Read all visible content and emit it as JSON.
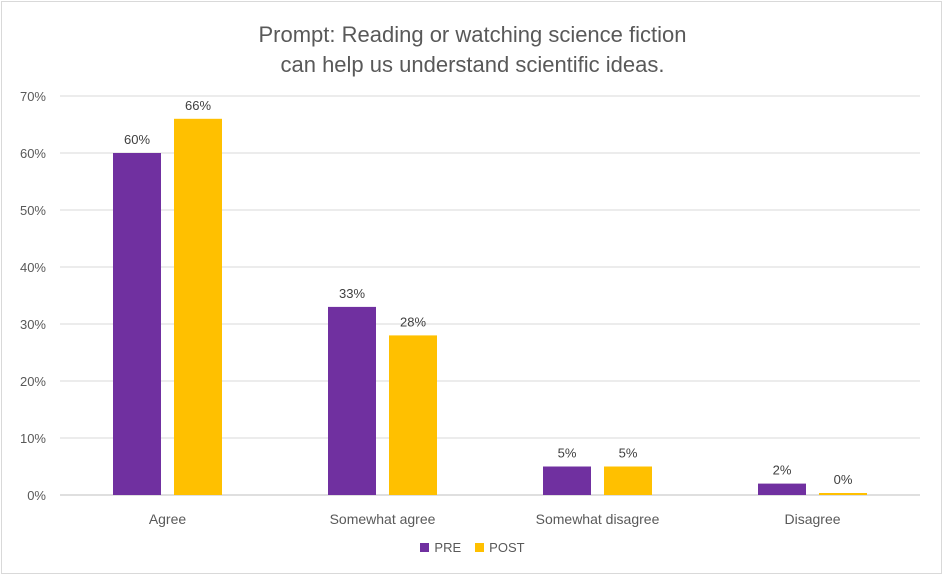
{
  "chart_data": {
    "type": "bar",
    "title_lines": [
      "Prompt: Reading or watching science fiction",
      "can help us understand scientific ideas."
    ],
    "categories": [
      "Agree",
      "Somewhat agree",
      "Somewhat disagree",
      "Disagree"
    ],
    "series": [
      {
        "name": "PRE",
        "color": "#7030a0",
        "values": [
          60,
          33,
          5,
          2
        ],
        "labels": [
          "60%",
          "33%",
          "5%",
          "2%"
        ]
      },
      {
        "name": "POST",
        "color": "#ffc000",
        "values": [
          66,
          28,
          5,
          0
        ],
        "labels": [
          "66%",
          "28%",
          "5%",
          "0%"
        ]
      }
    ],
    "ylim": [
      0,
      70
    ],
    "yticks": [
      0,
      10,
      20,
      30,
      40,
      50,
      60,
      70
    ],
    "ytick_labels": [
      "0%",
      "10%",
      "20%",
      "30%",
      "40%",
      "50%",
      "60%",
      "70%"
    ],
    "xlabel": "",
    "ylabel": "",
    "grid": true,
    "legend_position": "bottom"
  }
}
